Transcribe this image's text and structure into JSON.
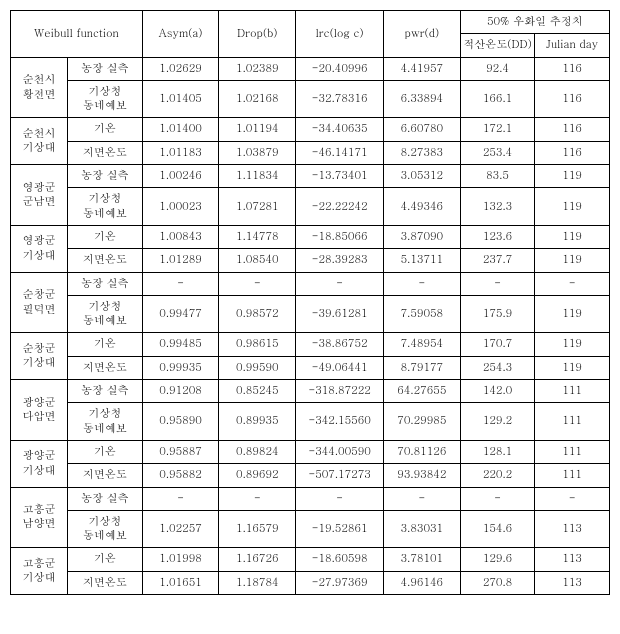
{
  "header": {
    "weibull": "Weibull function",
    "asym": "Asym(a)",
    "drop": "Drop(b)",
    "lrc": "lrc(log c)",
    "pwr": "pwr(d)",
    "fifty": "50% 우화일 추정치",
    "dd": "적산온도(DD)",
    "julian": "Julian day"
  },
  "groups": [
    {
      "region1": "순천시\n황전면",
      "rows": [
        {
          "label": "농장 실측",
          "a": "1.02629",
          "b": "1.02389",
          "c": "-20.40996",
          "d": "4.41957",
          "dd": "92.4",
          "j": "116"
        },
        {
          "label": "기상청\n동네예보",
          "a": "1.01405",
          "b": "1.02168",
          "c": "-32.78316",
          "d": "6.33894",
          "dd": "166.1",
          "j": "116"
        }
      ],
      "region2": "순천시\n기상대",
      "rows2": [
        {
          "label": "기온",
          "a": "1.01400",
          "b": "1.01194",
          "c": "-34.40635",
          "d": "6.60780",
          "dd": "172.1",
          "j": "116"
        },
        {
          "label": "지면온도",
          "a": "1.01183",
          "b": "1.03879",
          "c": "-46.14171",
          "d": "8.27383",
          "dd": "253.4",
          "j": "116"
        }
      ]
    },
    {
      "region1": "영광군\n군남면",
      "rows": [
        {
          "label": "농장 실측",
          "a": "1.00246",
          "b": "1.11834",
          "c": "-13.73401",
          "d": "3.05312",
          "dd": "83.5",
          "j": "119"
        },
        {
          "label": "기상청\n동네예보",
          "a": "1.00023",
          "b": "1.07281",
          "c": "-22.22242",
          "d": "4.49346",
          "dd": "132.3",
          "j": "119"
        }
      ],
      "region2": "영광군\n기상대",
      "rows2": [
        {
          "label": "기온",
          "a": "1.00843",
          "b": "1.14778",
          "c": "-18.85066",
          "d": "3.87090",
          "dd": "123.6",
          "j": "119"
        },
        {
          "label": "지면온도",
          "a": "1.01289",
          "b": "1.08540",
          "c": "-28.39283",
          "d": "5.13711",
          "dd": "237.7",
          "j": "119"
        }
      ]
    },
    {
      "region1": "순창군\n필덕면",
      "rows": [
        {
          "label": "농장 실측",
          "a": "-",
          "b": "-",
          "c": "-",
          "d": "-",
          "dd": "-",
          "j": "-"
        },
        {
          "label": "기상청\n동네예보",
          "a": "0.99477",
          "b": "0.98572",
          "c": "-39.61281",
          "d": "7.59058",
          "dd": "175.9",
          "j": "119"
        }
      ],
      "region2": "순창군\n기상대",
      "rows2": [
        {
          "label": "기온",
          "a": "0.99485",
          "b": "0.98615",
          "c": "-38.86752",
          "d": "7.48954",
          "dd": "170.7",
          "j": "119"
        },
        {
          "label": "지면온도",
          "a": "0.99935",
          "b": "0.99590",
          "c": "-49.06441",
          "d": "8.79177",
          "dd": "254.3",
          "j": "119"
        }
      ]
    },
    {
      "region1": "광양군\n다압면",
      "rows": [
        {
          "label": "농장 실측",
          "a": "0.91208",
          "b": "0.85245",
          "c": "-318.87222",
          "d": "64.27655",
          "dd": "142.0",
          "j": "111"
        },
        {
          "label": "기상청\n동네예보",
          "a": "0.95890",
          "b": "0.89935",
          "c": "-342.15560",
          "d": "70.29985",
          "dd": "129.2",
          "j": "111"
        }
      ],
      "region2": "광양군\n기상대",
      "rows2": [
        {
          "label": "기온",
          "a": "0.95887",
          "b": "0.89824",
          "c": "-344.00590",
          "d": "70.81126",
          "dd": "128.1",
          "j": "111"
        },
        {
          "label": "지면온도",
          "a": "0.95882",
          "b": "0.89692",
          "c": "-507.17273",
          "d": "93.93842",
          "dd": "220.2",
          "j": "111"
        }
      ]
    },
    {
      "region1": "고흥군\n남양면",
      "rows": [
        {
          "label": "농장 실측",
          "a": "-",
          "b": "-",
          "c": "-",
          "d": "-",
          "dd": "-",
          "j": "-"
        },
        {
          "label": "기상청\n동네예보",
          "a": "1.02257",
          "b": "1.16579",
          "c": "-19.52861",
          "d": "3.83031",
          "dd": "154.6",
          "j": "113"
        }
      ],
      "region2": "고흥군\n기상대",
      "rows2": [
        {
          "label": "기온",
          "a": "1.01998",
          "b": "1.16726",
          "c": "-18.60598",
          "d": "3.78101",
          "dd": "129.6",
          "j": "113"
        },
        {
          "label": "지면온도",
          "a": "1.01651",
          "b": "1.18784",
          "c": "-27.97369",
          "d": "4.96146",
          "dd": "270.8",
          "j": "113"
        }
      ]
    }
  ]
}
